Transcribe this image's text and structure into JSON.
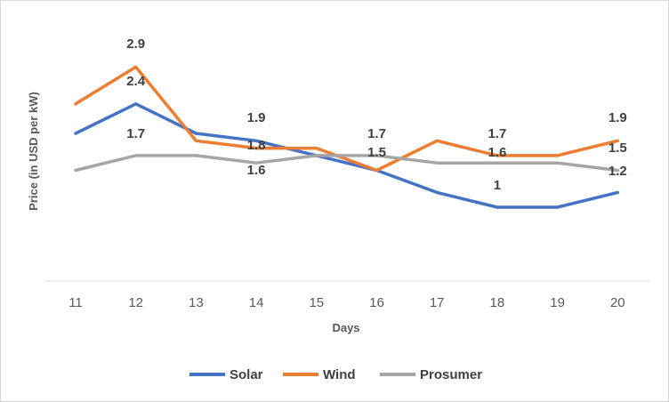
{
  "chart_data": {
    "type": "line",
    "title": "",
    "xlabel": "Days",
    "ylabel": "Price (in USD per kW)",
    "categories": [
      "11",
      "12",
      "13",
      "14",
      "15",
      "16",
      "17",
      "18",
      "19",
      "20"
    ],
    "ylim": [
      0,
      3.6
    ],
    "grid": false,
    "legend": "bottom",
    "series": [
      {
        "name": "Solar",
        "color": "#4472C4",
        "values": [
          2.0,
          2.4,
          2.0,
          1.9,
          1.7,
          1.5,
          1.2,
          1.0,
          1.0,
          1.2
        ]
      },
      {
        "name": "Wind",
        "color": "#ED7D31",
        "values": [
          2.4,
          2.9,
          1.9,
          1.8,
          1.8,
          1.5,
          1.9,
          1.7,
          1.7,
          1.9
        ]
      },
      {
        "name": "Prosumer",
        "color": "#A5A5A5",
        "values": [
          1.5,
          1.7,
          1.7,
          1.6,
          1.7,
          1.7,
          1.6,
          1.6,
          1.6,
          1.5
        ]
      }
    ],
    "data_labels": [
      {
        "category": "12",
        "text": "2.9"
      },
      {
        "category": "12",
        "text": "2.4"
      },
      {
        "category": "12",
        "text": "1.7"
      },
      {
        "category": "14",
        "text": "1.9"
      },
      {
        "category": "14",
        "text": "1.8"
      },
      {
        "category": "14",
        "text": "1.6"
      },
      {
        "category": "16",
        "text": "1.7"
      },
      {
        "category": "16",
        "text": "1.5"
      },
      {
        "category": "18",
        "text": "1.7"
      },
      {
        "category": "18",
        "text": "1.6"
      },
      {
        "category": "18",
        "text": "1"
      },
      {
        "category": "20",
        "text": "1.9"
      },
      {
        "category": "20",
        "text": "1.5"
      },
      {
        "category": "20",
        "text": "1.2"
      }
    ]
  }
}
